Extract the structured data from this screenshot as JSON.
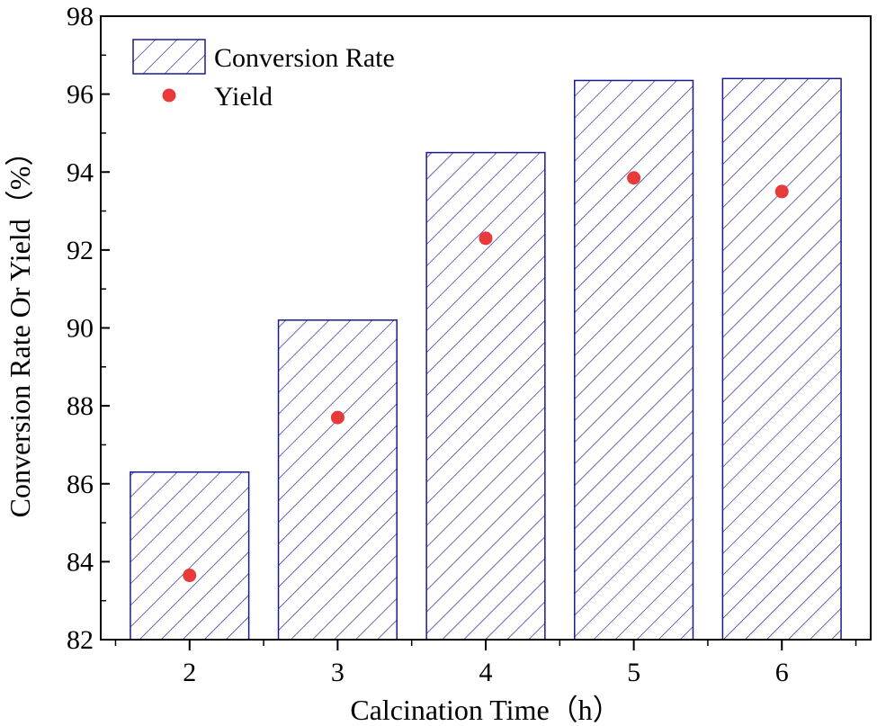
{
  "chart_data": {
    "type": "bar",
    "title": "",
    "xlabel": "Calcination Time（h）",
    "ylabel": "Conversion Rate Or Yield（%）",
    "categories": [
      "2",
      "3",
      "4",
      "5",
      "6"
    ],
    "x_values": [
      2,
      3,
      4,
      5,
      6
    ],
    "xlim": [
      1.4,
      6.6
    ],
    "ylim": [
      82,
      98
    ],
    "y_ticks": [
      82,
      84,
      86,
      88,
      90,
      92,
      94,
      96,
      98
    ],
    "grid": false,
    "legend_position": "top-left",
    "series": [
      {
        "name": "Conversion Rate",
        "kind": "bar",
        "pattern": "diagonal-hatch",
        "color": "#1a1a8c",
        "values": [
          86.3,
          90.2,
          94.5,
          96.35,
          96.4
        ]
      },
      {
        "name": "Yield",
        "kind": "scatter",
        "color": "#e83a3a",
        "values": [
          83.65,
          87.7,
          92.3,
          93.85,
          93.5
        ]
      }
    ],
    "legend": [
      {
        "label": "Conversion Rate",
        "marker": "hatched-box"
      },
      {
        "label": "Yield",
        "marker": "dot"
      }
    ]
  }
}
